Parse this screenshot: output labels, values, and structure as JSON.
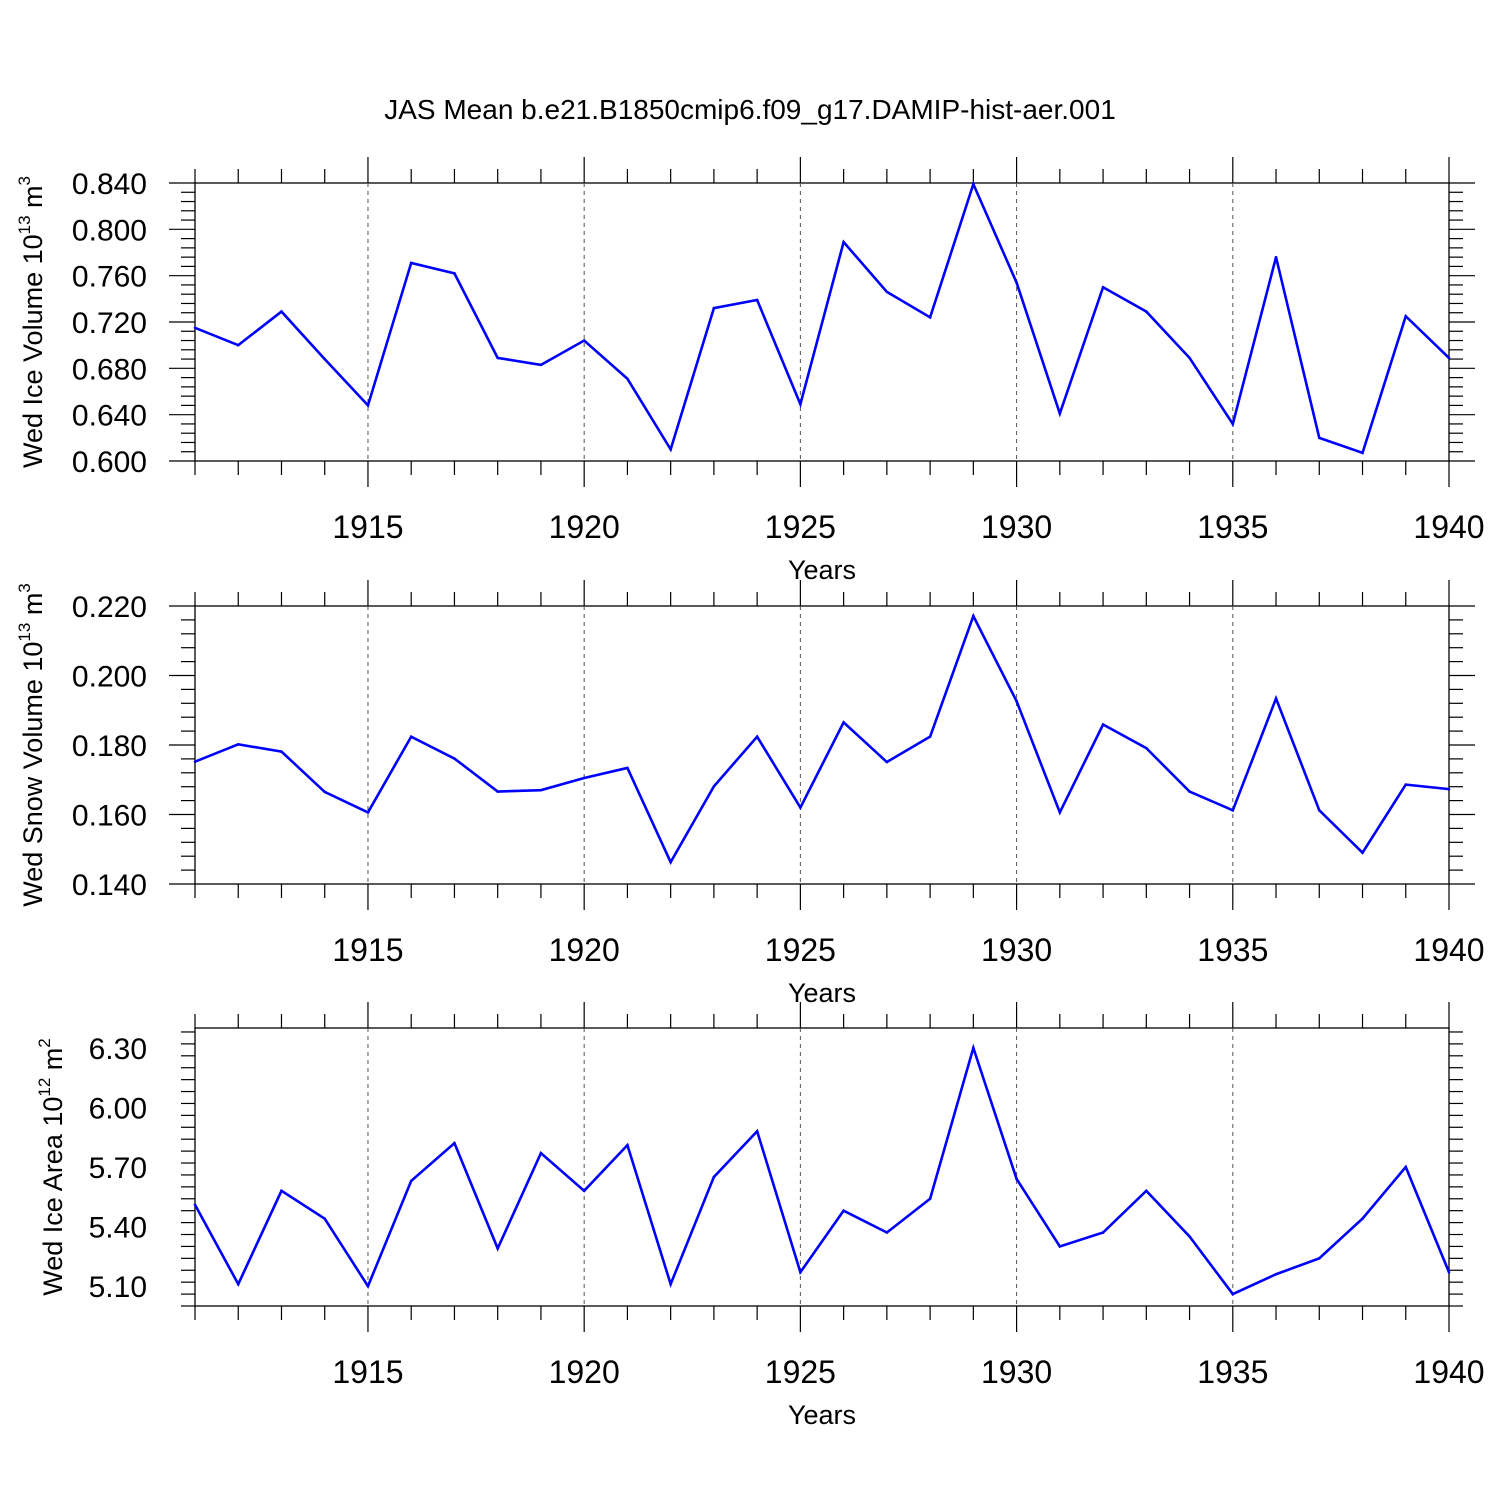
{
  "figure_title": "JAS Mean b.e21.B1850cmip6.f09_g17.DAMIP-hist-aer.001",
  "colors": {
    "line": "#0000ff",
    "axis": "#000000",
    "grid": "#555555",
    "background": "#ffffff"
  },
  "chart_data": [
    {
      "type": "line",
      "title": "JAS Mean b.e21.B1850cmip6.f09_g17.DAMIP-hist-aer.001",
      "xlabel": "Years",
      "ylabel": {
        "prefix": "Wed Ice Volume 10",
        "exponent": "13",
        "unit": " m",
        "unit_exponent": "3"
      },
      "xlim": [
        1911,
        1940
      ],
      "ylim": [
        0.6,
        0.84
      ],
      "xticks": [
        1915,
        1920,
        1925,
        1930,
        1935,
        1940
      ],
      "yticks": [
        "0.600",
        "0.640",
        "0.680",
        "0.720",
        "0.760",
        "0.800",
        "0.840"
      ],
      "grid": "vertical dashed lines at major x ticks",
      "series": [
        {
          "name": "Wed Ice Volume",
          "x": [
            1911,
            1912,
            1913,
            1914,
            1915,
            1916,
            1917,
            1918,
            1919,
            1920,
            1921,
            1922,
            1923,
            1924,
            1925,
            1926,
            1927,
            1928,
            1929,
            1930,
            1931,
            1932,
            1933,
            1934,
            1935,
            1936,
            1937,
            1938,
            1939,
            1940
          ],
          "values": [
            0.715,
            0.7,
            0.729,
            0.688,
            0.648,
            0.771,
            0.762,
            0.689,
            0.683,
            0.704,
            0.671,
            0.61,
            0.732,
            0.739,
            0.649,
            0.789,
            0.746,
            0.724,
            0.839,
            0.754,
            0.641,
            0.75,
            0.729,
            0.689,
            0.632,
            0.776,
            0.62,
            0.607,
            0.725,
            0.689
          ]
        }
      ]
    },
    {
      "type": "line",
      "xlabel": "Years",
      "ylabel": {
        "prefix": "Wed Snow Volume 10",
        "exponent": "13",
        "unit": " m",
        "unit_exponent": "3"
      },
      "xlim": [
        1911,
        1940
      ],
      "ylim": [
        0.14,
        0.22
      ],
      "xticks": [
        1915,
        1920,
        1925,
        1930,
        1935,
        1940
      ],
      "yticks": [
        "0.140",
        "0.160",
        "0.180",
        "0.200",
        "0.220"
      ],
      "grid": "vertical dashed lines at major x ticks",
      "series": [
        {
          "name": "Wed Snow Volume",
          "x": [
            1911,
            1912,
            1913,
            1914,
            1915,
            1916,
            1917,
            1918,
            1919,
            1920,
            1921,
            1922,
            1923,
            1924,
            1925,
            1926,
            1927,
            1928,
            1929,
            1930,
            1931,
            1932,
            1933,
            1934,
            1935,
            1936,
            1937,
            1938,
            1939,
            1940
          ],
          "values": [
            0.1752,
            0.1802,
            0.1781,
            0.1665,
            0.1606,
            0.1824,
            0.1761,
            0.1666,
            0.167,
            0.1705,
            0.1734,
            0.1463,
            0.1681,
            0.1824,
            0.162,
            0.1865,
            0.1751,
            0.1824,
            0.2171,
            0.1926,
            0.1606,
            0.1859,
            0.1791,
            0.1666,
            0.1612,
            0.1934,
            0.1612,
            0.149,
            0.1686,
            0.1673
          ]
        }
      ]
    },
    {
      "type": "line",
      "xlabel": "Years",
      "ylabel": {
        "prefix": "Wed Ice Area 10",
        "exponent": "12",
        "unit": " m",
        "unit_exponent": "2"
      },
      "xlim": [
        1911,
        1940
      ],
      "ylim": [
        5.0,
        6.4
      ],
      "xticks": [
        1915,
        1920,
        1925,
        1930,
        1935,
        1940
      ],
      "yticks": [
        "5.10",
        "5.40",
        "5.70",
        "6.00",
        "6.30"
      ],
      "grid": "vertical dashed lines at major x ticks",
      "series": [
        {
          "name": "Wed Ice Area",
          "x": [
            1911,
            1912,
            1913,
            1914,
            1915,
            1916,
            1917,
            1918,
            1919,
            1920,
            1921,
            1922,
            1923,
            1924,
            1925,
            1926,
            1927,
            1928,
            1929,
            1930,
            1931,
            1932,
            1933,
            1934,
            1935,
            1936,
            1937,
            1938,
            1939,
            1940
          ],
          "values": [
            5.51,
            5.11,
            5.58,
            5.44,
            5.1,
            5.63,
            5.82,
            5.29,
            5.77,
            5.58,
            5.81,
            5.11,
            5.65,
            5.88,
            5.17,
            5.48,
            5.37,
            5.54,
            6.3,
            5.64,
            5.3,
            5.37,
            5.58,
            5.35,
            5.06,
            5.16,
            5.24,
            5.44,
            5.7,
            5.17
          ]
        }
      ]
    }
  ]
}
